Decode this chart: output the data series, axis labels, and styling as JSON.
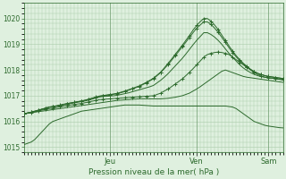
{
  "background_color": "#dff0df",
  "plot_bg_color": "#dff0df",
  "grid_color": "#aaccaa",
  "line_color": "#2d6a2d",
  "xlabel": "Pression niveau de la mer( hPa )",
  "ylim": [
    1014.8,
    1020.6
  ],
  "yticks": [
    1015,
    1016,
    1017,
    1018,
    1019,
    1020
  ],
  "x_day_labels": [
    [
      "Jeu",
      24
    ],
    [
      "Ven",
      48
    ],
    [
      "Sam",
      68
    ]
  ],
  "n_points": 73,
  "series": [
    {
      "data": [
        1015.1,
        1015.15,
        1015.2,
        1015.3,
        1015.45,
        1015.6,
        1015.75,
        1015.9,
        1016.0,
        1016.05,
        1016.1,
        1016.15,
        1016.2,
        1016.25,
        1016.3,
        1016.35,
        1016.4,
        1016.42,
        1016.44,
        1016.46,
        1016.48,
        1016.5,
        1016.52,
        1016.54,
        1016.56,
        1016.58,
        1016.6,
        1016.62,
        1016.64,
        1016.64,
        1016.64,
        1016.64,
        1016.64,
        1016.63,
        1016.62,
        1016.61,
        1016.6,
        1016.6,
        1016.6,
        1016.6,
        1016.6,
        1016.6,
        1016.6,
        1016.6,
        1016.6,
        1016.6,
        1016.6,
        1016.6,
        1016.6,
        1016.6,
        1016.6,
        1016.6,
        1016.6,
        1016.6,
        1016.6,
        1016.6,
        1016.6,
        1016.58,
        1016.56,
        1016.5,
        1016.4,
        1016.3,
        1016.2,
        1016.1,
        1016.0,
        1015.95,
        1015.9,
        1015.85,
        1015.82,
        1015.8,
        1015.78,
        1015.76,
        1015.75
      ],
      "markers": false
    },
    {
      "data": [
        1016.3,
        1016.32,
        1016.34,
        1016.36,
        1016.38,
        1016.4,
        1016.42,
        1016.44,
        1016.46,
        1016.48,
        1016.5,
        1016.52,
        1016.54,
        1016.56,
        1016.58,
        1016.6,
        1016.62,
        1016.64,
        1016.66,
        1016.68,
        1016.7,
        1016.72,
        1016.74,
        1016.76,
        1016.78,
        1016.8,
        1016.82,
        1016.83,
        1016.84,
        1016.85,
        1016.86,
        1016.87,
        1016.88,
        1016.88,
        1016.88,
        1016.88,
        1016.88,
        1016.88,
        1016.88,
        1016.89,
        1016.9,
        1016.92,
        1016.94,
        1016.97,
        1017.0,
        1017.05,
        1017.1,
        1017.18,
        1017.26,
        1017.35,
        1017.45,
        1017.55,
        1017.65,
        1017.75,
        1017.85,
        1017.95,
        1018.0,
        1017.95,
        1017.9,
        1017.85,
        1017.8,
        1017.75,
        1017.72,
        1017.7,
        1017.68,
        1017.66,
        1017.64,
        1017.62,
        1017.6,
        1017.58,
        1017.56,
        1017.54,
        1017.52
      ],
      "markers": false
    },
    {
      "data": [
        1016.3,
        1016.32,
        1016.35,
        1016.38,
        1016.41,
        1016.44,
        1016.47,
        1016.5,
        1016.52,
        1016.54,
        1016.57,
        1016.6,
        1016.62,
        1016.64,
        1016.66,
        1016.68,
        1016.7,
        1016.73,
        1016.76,
        1016.79,
        1016.82,
        1016.85,
        1016.86,
        1016.87,
        1016.88,
        1016.89,
        1016.9,
        1016.91,
        1016.92,
        1016.93,
        1016.94,
        1016.95,
        1016.96,
        1016.97,
        1016.98,
        1016.99,
        1017.0,
        1017.05,
        1017.1,
        1017.18,
        1017.26,
        1017.35,
        1017.45,
        1017.55,
        1017.65,
        1017.78,
        1017.91,
        1018.05,
        1018.2,
        1018.35,
        1018.5,
        1018.6,
        1018.65,
        1018.68,
        1018.7,
        1018.68,
        1018.65,
        1018.6,
        1018.5,
        1018.4,
        1018.3,
        1018.2,
        1018.1,
        1018.0,
        1017.9,
        1017.82,
        1017.76,
        1017.72,
        1017.7,
        1017.68,
        1017.66,
        1017.64,
        1017.62
      ],
      "markers": true
    },
    {
      "data": [
        1016.3,
        1016.33,
        1016.36,
        1016.39,
        1016.43,
        1016.47,
        1016.51,
        1016.55,
        1016.57,
        1016.59,
        1016.62,
        1016.65,
        1016.67,
        1016.7,
        1016.72,
        1016.75,
        1016.77,
        1016.8,
        1016.83,
        1016.87,
        1016.91,
        1016.95,
        1016.97,
        1016.98,
        1016.99,
        1017.0,
        1017.02,
        1017.05,
        1017.08,
        1017.11,
        1017.15,
        1017.19,
        1017.23,
        1017.27,
        1017.31,
        1017.35,
        1017.4,
        1017.5,
        1017.6,
        1017.72,
        1017.85,
        1018.0,
        1018.15,
        1018.3,
        1018.45,
        1018.62,
        1018.8,
        1018.98,
        1019.15,
        1019.3,
        1019.45,
        1019.45,
        1019.38,
        1019.28,
        1019.15,
        1019.0,
        1018.82,
        1018.65,
        1018.5,
        1018.35,
        1018.2,
        1018.08,
        1017.98,
        1017.9,
        1017.83,
        1017.78,
        1017.74,
        1017.72,
        1017.7,
        1017.68,
        1017.66,
        1017.64,
        1017.62
      ],
      "markers": false
    },
    {
      "data": [
        1016.3,
        1016.33,
        1016.36,
        1016.4,
        1016.44,
        1016.48,
        1016.52,
        1016.56,
        1016.58,
        1016.61,
        1016.64,
        1016.67,
        1016.7,
        1016.72,
        1016.75,
        1016.77,
        1016.8,
        1016.83,
        1016.87,
        1016.91,
        1016.95,
        1016.99,
        1017.01,
        1017.03,
        1017.05,
        1017.07,
        1017.1,
        1017.14,
        1017.18,
        1017.23,
        1017.28,
        1017.33,
        1017.38,
        1017.45,
        1017.52,
        1017.6,
        1017.68,
        1017.8,
        1017.92,
        1018.08,
        1018.25,
        1018.42,
        1018.6,
        1018.78,
        1018.96,
        1019.15,
        1019.34,
        1019.55,
        1019.73,
        1019.88,
        1020.0,
        1020.0,
        1019.9,
        1019.75,
        1019.57,
        1019.36,
        1019.15,
        1018.94,
        1018.74,
        1018.56,
        1018.4,
        1018.26,
        1018.14,
        1018.03,
        1017.94,
        1017.87,
        1017.82,
        1017.78,
        1017.75,
        1017.73,
        1017.71,
        1017.69,
        1017.67
      ],
      "markers": true
    },
    {
      "data": [
        1016.3,
        1016.33,
        1016.36,
        1016.4,
        1016.44,
        1016.48,
        1016.52,
        1016.56,
        1016.58,
        1016.6,
        1016.63,
        1016.66,
        1016.69,
        1016.72,
        1016.74,
        1016.77,
        1016.79,
        1016.82,
        1016.86,
        1016.9,
        1016.94,
        1016.98,
        1017.0,
        1017.02,
        1017.04,
        1017.06,
        1017.08,
        1017.12,
        1017.16,
        1017.21,
        1017.26,
        1017.31,
        1017.36,
        1017.43,
        1017.5,
        1017.58,
        1017.66,
        1017.78,
        1017.9,
        1018.05,
        1018.2,
        1018.37,
        1018.55,
        1018.72,
        1018.9,
        1019.08,
        1019.26,
        1019.45,
        1019.62,
        1019.75,
        1019.87,
        1019.87,
        1019.77,
        1019.63,
        1019.46,
        1019.27,
        1019.07,
        1018.87,
        1018.68,
        1018.51,
        1018.36,
        1018.23,
        1018.12,
        1018.02,
        1017.94,
        1017.87,
        1017.82,
        1017.78,
        1017.75,
        1017.73,
        1017.71,
        1017.69,
        1017.67
      ],
      "markers": true
    }
  ],
  "figsize": [
    3.2,
    2.0
  ],
  "dpi": 100
}
